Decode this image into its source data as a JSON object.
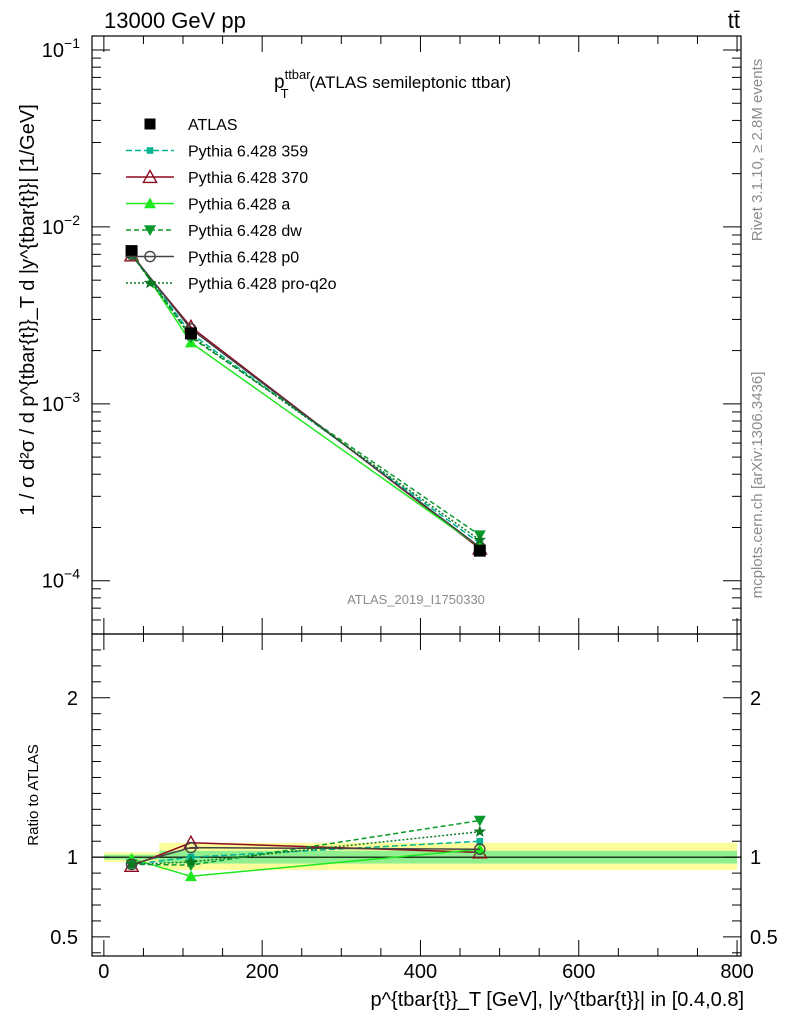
{
  "header": {
    "left": "13000 GeV pp",
    "right": "tt̄"
  },
  "side_labels": {
    "rivet": "Rivet 3.1.10, ≥ 2.8M events",
    "mcplots": "mcplots.cern.ch [arXiv:1306.3436]"
  },
  "chart_data": [
    {
      "type": "line",
      "panel": "main",
      "title": {
        "main": "p",
        "sub": "T",
        "sup": "ttbar",
        "rest": " (ATLAS semileptonic ttbar)"
      },
      "ylabel": "1 / σ d²σ / d p^{tbar{t}}_T d |y^{tbar{t}}| [1/GeV]",
      "yscale": "log",
      "ylim": [
        5e-05,
        0.12
      ],
      "xlim": [
        -15,
        805
      ],
      "y_ticks": [
        {
          "v": 0.1,
          "base": "10",
          "exp": "−1"
        },
        {
          "v": 0.01,
          "base": "10",
          "exp": "−2"
        },
        {
          "v": 0.001,
          "base": "10",
          "exp": "−3"
        },
        {
          "v": 0.0001,
          "base": "10",
          "exp": "−4"
        }
      ],
      "watermark": "ATLAS_2019_I1750330",
      "legend_position": "top-left",
      "x": [
        35,
        110,
        475
      ],
      "series": [
        {
          "name": "ATLAS",
          "values": [
            0.0073,
            0.0025,
            0.000148
          ]
        },
        {
          "name": "Pythia 6.428 359",
          "values": [
            0.007,
            0.0025,
            0.000163
          ]
        },
        {
          "name": "Pythia 6.428 370",
          "values": [
            0.0069,
            0.00272,
            0.000152
          ]
        },
        {
          "name": "Pythia 6.428 a",
          "values": [
            0.0072,
            0.00222,
            0.000155
          ]
        },
        {
          "name": "Pythia 6.428 dw",
          "values": [
            0.007,
            0.00238,
            0.000181
          ]
        },
        {
          "name": "Pythia 6.428 p0",
          "values": [
            0.007,
            0.00265,
            0.000155
          ]
        },
        {
          "name": "Pythia 6.428 pro-q2o",
          "values": [
            0.007,
            0.00242,
            0.00017
          ]
        }
      ]
    },
    {
      "type": "line",
      "panel": "ratio",
      "ylabel": "Ratio to ATLAS",
      "xlabel": "p^{tbar{t}}_T [GeV], |y^{tbar{t}}| in [0.4,0.8]",
      "ylim": [
        0.38,
        2.4
      ],
      "xlim": [
        -15,
        805
      ],
      "x_ticks": [
        0,
        200,
        400,
        600,
        800
      ],
      "y_ticks": [
        0.5,
        1,
        2
      ],
      "band_inner": [
        {
          "x0": 0,
          "x1": 70,
          "lo": 0.985,
          "hi": 1.015
        },
        {
          "x0": 70,
          "x1": 800,
          "lo": 0.96,
          "hi": 1.04
        }
      ],
      "band_outer": [
        {
          "x0": 0,
          "x1": 70,
          "lo": 0.97,
          "hi": 1.03
        },
        {
          "x0": 70,
          "x1": 800,
          "lo": 0.92,
          "hi": 1.09
        }
      ],
      "x": [
        35,
        110,
        475
      ],
      "series": [
        {
          "name": "Pythia 6.428 359",
          "values": [
            0.955,
            1.0,
            1.1
          ]
        },
        {
          "name": "Pythia 6.428 370",
          "values": [
            0.945,
            1.09,
            1.03
          ]
        },
        {
          "name": "Pythia 6.428 a",
          "values": [
            0.99,
            0.88,
            1.05
          ]
        },
        {
          "name": "Pythia 6.428 dw",
          "values": [
            0.955,
            0.95,
            1.23
          ]
        },
        {
          "name": "Pythia 6.428 p0",
          "values": [
            0.955,
            1.06,
            1.05
          ]
        },
        {
          "name": "Pythia 6.428 pro-q2o",
          "values": [
            0.955,
            0.97,
            1.16
          ]
        }
      ]
    }
  ],
  "styles": {
    "ATLAS": {
      "color": "#000000",
      "marker": "square",
      "dash": ""
    },
    "Pythia 6.428 359": {
      "color": "#00b391",
      "marker": "smallsquare",
      "dash": "6,3"
    },
    "Pythia 6.428 370": {
      "color": "#8b0a1e",
      "marker": "triangle-open",
      "dash": ""
    },
    "Pythia 6.428 a": {
      "color": "#1ee81e",
      "marker": "triangle",
      "dash": ""
    },
    "Pythia 6.428 dw": {
      "color": "#0a9a2c",
      "marker": "triangle-down",
      "dash": "5,3"
    },
    "Pythia 6.428 p0": {
      "color": "#444444",
      "marker": "circle-open",
      "dash": ""
    },
    "Pythia 6.428 pro-q2o": {
      "color": "#0a7a22",
      "marker": "star",
      "dash": "2,2"
    }
  },
  "band_colors": {
    "inner": "#90f090",
    "outer": "#fdfd9a"
  }
}
